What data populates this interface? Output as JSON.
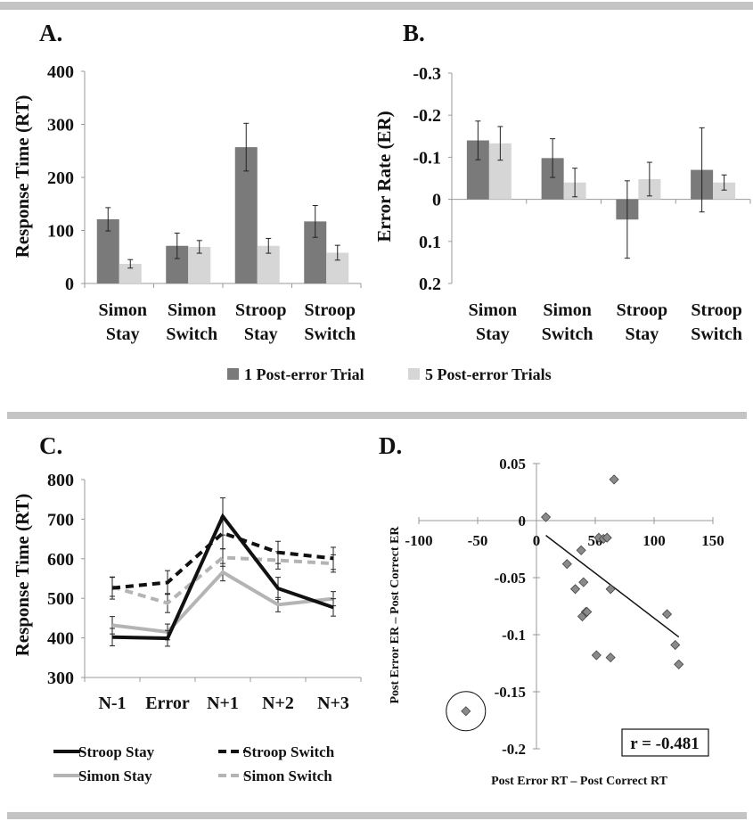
{
  "colors": {
    "dark_bar": "#7a7a7a",
    "light_bar": "#d6d6d6",
    "rule": "#c4c4c4",
    "black": "#111111",
    "gray_line": "#b4b4b4",
    "diamond": "#8a8a8a"
  },
  "chart_data": [
    {
      "panel_label": "A.",
      "type": "bar",
      "ylabel": "Response Time (RT)",
      "ylim": [
        0,
        400
      ],
      "yticks": [
        "0",
        "100",
        "200",
        "300",
        "400"
      ],
      "categories": [
        [
          "Simon",
          "Stay"
        ],
        [
          "Simon",
          "Switch"
        ],
        [
          "Stroop",
          "Stay"
        ],
        [
          "Stroop",
          "Switch"
        ]
      ],
      "series": [
        {
          "name": "1 Post-error Trial",
          "values": [
            121,
            71,
            257,
            117
          ],
          "errors": [
            22,
            24,
            45,
            30
          ]
        },
        {
          "name": "5 Post-error Trials",
          "values": [
            37,
            69,
            71,
            58
          ],
          "errors": [
            8,
            12,
            14,
            14
          ]
        }
      ]
    },
    {
      "panel_label": "B.",
      "type": "bar",
      "ylabel": "Error Rate (ER)",
      "ylim": [
        0.2,
        -0.3
      ],
      "yticks": [
        "-0.3",
        "-0.2",
        "-0.1",
        "0",
        "0.1",
        "0.2"
      ],
      "categories": [
        [
          "Simon",
          "Stay"
        ],
        [
          "Simon",
          "Switch"
        ],
        [
          "Stroop",
          "Stay"
        ],
        [
          "Stroop",
          "Switch"
        ]
      ],
      "series": [
        {
          "name": "1 Post-error Trial",
          "values": [
            -0.14,
            -0.098,
            0.048,
            -0.07
          ],
          "errors": [
            0.046,
            0.046,
            0.092,
            0.1
          ]
        },
        {
          "name": "5 Post-error Trials",
          "values": [
            -0.133,
            -0.04,
            -0.048,
            -0.04
          ],
          "errors": [
            0.04,
            0.034,
            0.04,
            0.018
          ]
        }
      ]
    },
    {
      "panel_label": "C.",
      "type": "line",
      "ylabel": "Response Time (RT)",
      "ylim": [
        300,
        800
      ],
      "yticks": [
        "300",
        "400",
        "500",
        "600",
        "700",
        "800"
      ],
      "categories": [
        "N-1",
        "Error",
        "N+1",
        "N+2",
        "N+3"
      ],
      "series": [
        {
          "name": "Stroop Stay",
          "values": [
            402,
            399,
            707,
            525,
            477
          ],
          "errors": [
            22,
            20,
            47,
            28,
            22
          ]
        },
        {
          "name": "Stroop Switch",
          "values": [
            526,
            540,
            665,
            616,
            601
          ],
          "errors": [
            28,
            30,
            40,
            28,
            28
          ]
        },
        {
          "name": "Simon Stay",
          "values": [
            432,
            415,
            566,
            484,
            499
          ],
          "errors": [
            22,
            20,
            22,
            18,
            18
          ]
        },
        {
          "name": "Simon Switch",
          "values": [
            529,
            488,
            603,
            596,
            588
          ],
          "errors": [
            24,
            24,
            22,
            22,
            22
          ]
        }
      ]
    },
    {
      "panel_label": "D.",
      "type": "scatter",
      "xlabel": "Post Error RT – Post Correct RT",
      "ylabel": "Post Error ER – Post Correct ER",
      "xlim": [
        -100,
        150
      ],
      "ylim": [
        -0.2,
        0.05
      ],
      "xticks": [
        "-100",
        "-50",
        "0",
        "50",
        "100",
        "150"
      ],
      "yticks": [
        "0.05",
        "0",
        "-0.05",
        "-0.1",
        "-0.15",
        "-0.2"
      ],
      "annotation": "r = -0.481",
      "points": [
        [
          8,
          0.003
        ],
        [
          26,
          -0.038
        ],
        [
          33,
          -0.06
        ],
        [
          38,
          -0.026
        ],
        [
          39,
          -0.084
        ],
        [
          40,
          -0.054
        ],
        [
          42,
          -0.08
        ],
        [
          43,
          -0.08
        ],
        [
          51,
          -0.118
        ],
        [
          53,
          -0.015
        ],
        [
          57,
          -0.016
        ],
        [
          60,
          -0.015
        ],
        [
          63,
          -0.12
        ],
        [
          63,
          -0.06
        ],
        [
          66,
          0.036
        ],
        [
          111,
          -0.082
        ],
        [
          118,
          -0.109
        ],
        [
          121,
          -0.126
        ],
        [
          -60,
          -0.167
        ]
      ],
      "circled_point": [
        -60,
        -0.167
      ],
      "trendline": [
        [
          8,
          -0.013
        ],
        [
          121,
          -0.102
        ]
      ]
    }
  ]
}
